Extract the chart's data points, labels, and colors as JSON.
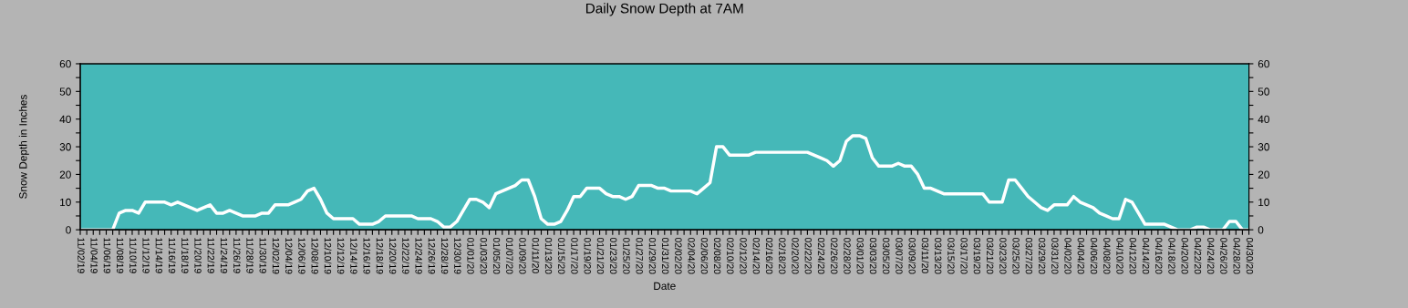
{
  "chart_data": {
    "type": "line",
    "title": "Daily Snow Depth at 7AM",
    "xlabel": "Date",
    "ylabel": "Snow Depth in Inches",
    "categories": [
      "11/02/19",
      null,
      "11/04/19",
      null,
      "11/06/19",
      null,
      "11/08/19",
      null,
      "11/10/19",
      null,
      "11/12/19",
      null,
      "11/14/19",
      null,
      "11/16/19",
      null,
      "11/18/19",
      null,
      "11/20/19",
      null,
      "11/22/19",
      null,
      "11/24/19",
      null,
      "11/26/19",
      null,
      "11/28/19",
      null,
      "11/30/19",
      null,
      "12/02/19",
      null,
      "12/04/19",
      null,
      "12/06/19",
      null,
      "12/08/19",
      null,
      "12/10/19",
      null,
      "12/12/19",
      null,
      "12/14/19",
      null,
      "12/16/19",
      null,
      "12/18/19",
      null,
      "12/20/19",
      null,
      "12/22/19",
      null,
      "12/24/19",
      null,
      "12/26/19",
      null,
      "12/28/19",
      null,
      "12/30/19",
      null,
      "01/01/20",
      null,
      "01/03/20",
      null,
      "01/05/20",
      null,
      "01/07/20",
      null,
      "01/09/20",
      null,
      "01/11/20",
      null,
      "01/13/20",
      null,
      "01/15/20",
      null,
      "01/17/20",
      null,
      "01/19/20",
      null,
      "01/21/20",
      null,
      "01/23/20",
      null,
      "01/25/20",
      null,
      "01/27/20",
      null,
      "01/29/20",
      null,
      "01/31/20",
      null,
      "02/02/20",
      null,
      "02/04/20",
      null,
      "02/06/20",
      null,
      "02/08/20",
      null,
      "02/10/20",
      null,
      "02/12/20",
      null,
      "02/14/20",
      null,
      "02/16/20",
      null,
      "02/18/20",
      null,
      "02/20/20",
      null,
      "02/22/20",
      null,
      "02/24/20",
      null,
      "02/26/20",
      null,
      "02/28/20",
      null,
      "03/01/20",
      null,
      "03/03/20",
      null,
      "03/05/20",
      null,
      "03/07/20",
      null,
      "03/09/20",
      null,
      "03/11/20",
      null,
      "03/13/20",
      null,
      "03/15/20",
      null,
      "03/17/20",
      null,
      "03/19/20",
      null,
      "03/21/20",
      null,
      "03/23/20",
      null,
      "03/25/20",
      null,
      "03/27/20",
      null,
      "03/29/20",
      null,
      "03/31/20",
      null,
      "04/02/20",
      null,
      "04/04/20",
      null,
      "04/06/20",
      null,
      "04/08/20",
      null,
      "04/10/20",
      null,
      "04/12/20",
      null,
      "04/14/20",
      null,
      "04/16/20",
      null,
      "04/18/20",
      null,
      "04/20/20",
      null,
      "04/22/20",
      null,
      "04/24/20",
      null,
      "04/26/20",
      null,
      "04/28/20",
      null,
      "04/30/20"
    ],
    "series": [
      {
        "color": "#ffffff",
        "values": [
          0,
          0,
          0,
          0,
          0,
          0,
          6,
          7,
          7,
          6,
          10,
          10,
          10,
          10,
          9,
          10,
          9,
          8,
          7,
          8,
          9,
          6,
          6,
          7,
          6,
          5,
          5,
          5,
          6,
          6,
          9,
          9,
          9,
          10,
          11,
          14,
          15,
          11,
          6,
          4,
          4,
          4,
          4,
          2,
          2,
          2,
          3,
          5,
          5,
          5,
          5,
          5,
          4,
          4,
          4,
          3,
          1,
          1,
          3,
          7,
          11,
          11,
          10,
          8,
          13,
          14,
          15,
          16,
          18,
          18,
          12,
          4,
          2,
          2,
          3,
          7,
          12,
          12,
          15,
          15,
          15,
          13,
          12,
          12,
          11,
          12,
          16,
          16,
          16,
          15,
          15,
          14,
          14,
          14,
          14,
          13,
          15,
          17,
          30,
          30,
          27,
          27,
          27,
          27,
          28,
          28,
          28,
          28,
          28,
          28,
          28,
          28,
          28,
          27,
          26,
          25,
          23,
          25,
          32,
          34,
          34,
          33,
          26,
          23,
          23,
          23,
          24,
          23,
          23,
          20,
          15,
          15,
          14,
          13,
          13,
          13,
          13,
          13,
          13,
          13,
          10,
          10,
          10,
          18,
          18,
          15,
          12,
          10,
          8,
          7,
          9,
          9,
          9,
          12,
          10,
          9,
          8,
          6,
          5,
          4,
          4,
          11,
          10,
          6,
          2,
          2,
          2,
          2,
          1,
          0,
          0,
          0,
          1,
          1,
          0,
          0,
          0,
          3,
          3,
          0,
          0
        ]
      }
    ],
    "ylim": [
      0,
      60
    ],
    "yticks": [
      0,
      {
        "value": 5,
        "label": null
      },
      10,
      {
        "value": 15,
        "label": null
      },
      20,
      {
        "value": 25,
        "label": null
      },
      30,
      {
        "value": 35,
        "label": null
      },
      40,
      {
        "value": 45,
        "label": null
      },
      50,
      {
        "value": 55,
        "label": null
      },
      60
    ],
    "y2lim": [
      0,
      60
    ],
    "y2ticks": [
      0,
      {
        "value": 5,
        "label": null
      },
      10,
      {
        "value": 15,
        "label": null
      },
      20,
      {
        "value": 25,
        "label": null
      },
      30,
      {
        "value": 35,
        "label": null
      },
      40,
      {
        "value": 45,
        "label": null
      },
      50,
      {
        "value": 55,
        "label": null
      },
      60
    ],
    "grid": false,
    "legend": false,
    "marker": "none",
    "line_style": "solid"
  }
}
